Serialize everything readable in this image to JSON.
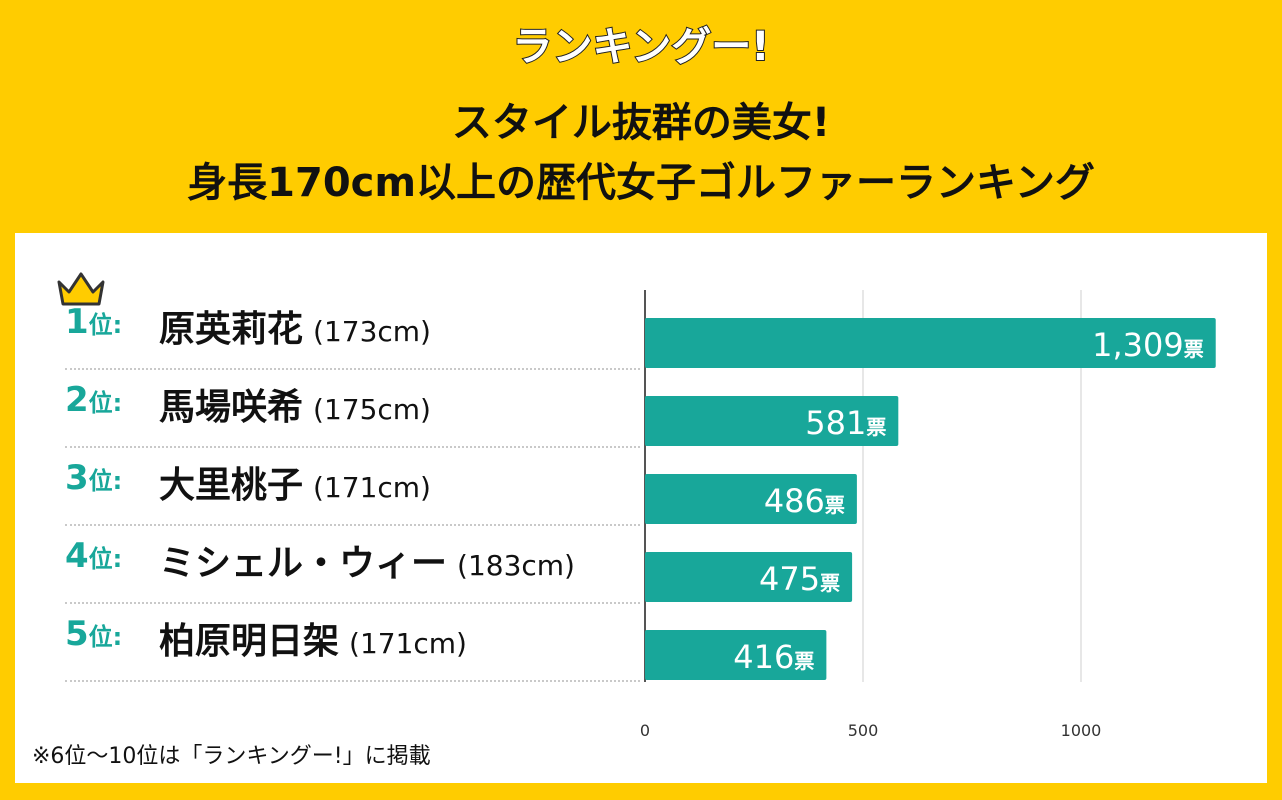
{
  "logo_text": "ランキングー!",
  "title_line1": "スタイル抜群の美女!",
  "title_line2": "身長170cm以上の歴代女子ゴルファーランキング",
  "colors": {
    "background": "#ffcc00",
    "bar": "#18a79a",
    "rank_text": "#18a79a",
    "panel": "#ffffff"
  },
  "rankings": [
    {
      "rank": "1",
      "unit": "位:",
      "name": "原英莉花",
      "height": "(173cm)"
    },
    {
      "rank": "2",
      "unit": "位:",
      "name": "馬場咲希",
      "height": "(175cm)"
    },
    {
      "rank": "3",
      "unit": "位:",
      "name": "大里桃子",
      "height": "(171cm)"
    },
    {
      "rank": "4",
      "unit": "位:",
      "name": "ミシェル・ウィー",
      "height": "(183cm)"
    },
    {
      "rank": "5",
      "unit": "位:",
      "name": "柏原明日架",
      "height": "(171cm)"
    }
  ],
  "chart_data": {
    "type": "bar",
    "orientation": "horizontal",
    "categories": [
      "原英莉花",
      "馬場咲希",
      "大里桃子",
      "ミシェル・ウィー",
      "柏原明日架"
    ],
    "values": [
      1309,
      581,
      486,
      475,
      416
    ],
    "value_labels": [
      "1,309",
      "581",
      "486",
      "475",
      "416"
    ],
    "value_unit": "票",
    "xlim": [
      0,
      1300
    ],
    "xticks": [
      0,
      500,
      1000
    ],
    "xtick_labels": [
      "0",
      "500",
      "1000"
    ],
    "grid": true
  },
  "footnote": "※6位〜10位は「ランキングー!」に掲載"
}
